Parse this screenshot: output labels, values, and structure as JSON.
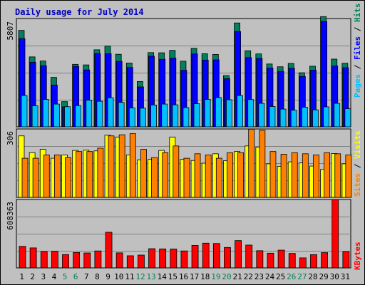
{
  "chart_data": [
    {
      "type": "bar",
      "title": "Daily usage for July 2014",
      "max_label": "5807",
      "categories": [
        "1",
        "2",
        "3",
        "4",
        "5",
        "6",
        "7",
        "8",
        "9",
        "10",
        "11",
        "12",
        "13",
        "14",
        "15",
        "16",
        "17",
        "18",
        "19",
        "20",
        "21",
        "22",
        "23",
        "24",
        "25",
        "26",
        "27",
        "28",
        "29",
        "30",
        "31"
      ],
      "weekend_days": [
        "5",
        "6",
        "12",
        "13",
        "19",
        "20",
        "26",
        "27"
      ],
      "series": [
        {
          "name": "Hits",
          "color": "#00805c",
          "values": [
            5170,
            3750,
            3530,
            2650,
            1350,
            3350,
            3320,
            4130,
            4330,
            3890,
            3420,
            2430,
            3980,
            3970,
            4100,
            3520,
            4210,
            3920,
            3880,
            2750,
            5570,
            4080,
            3910,
            3370,
            3220,
            3400,
            2900,
            3250,
            5910,
            3630,
            3410
          ]
        },
        {
          "name": "Files",
          "color": "#0000ff",
          "values": [
            4730,
            3460,
            3270,
            2240,
            1070,
            3240,
            3050,
            3930,
            3920,
            3510,
            3180,
            2140,
            3790,
            3620,
            3680,
            3030,
            3910,
            3580,
            3590,
            2580,
            5110,
            3710,
            3670,
            3150,
            2970,
            3140,
            2700,
            3040,
            5650,
            3260,
            3170
          ]
        },
        {
          "name": "Pages",
          "color": "#00c0ff",
          "values": [
            1680,
            1130,
            1470,
            1220,
            1080,
            1140,
            1430,
            1370,
            1560,
            1310,
            1010,
            1000,
            1170,
            1220,
            1180,
            1030,
            1240,
            1470,
            1570,
            1450,
            1680,
            1460,
            1260,
            1090,
            950,
            890,
            1050,
            910,
            1070,
            1260,
            970
          ]
        }
      ]
    },
    {
      "type": "bar",
      "max_label": "306",
      "categories": [
        "1",
        "2",
        "3",
        "4",
        "5",
        "6",
        "7",
        "8",
        "9",
        "10",
        "11",
        "12",
        "13",
        "14",
        "15",
        "16",
        "17",
        "18",
        "19",
        "20",
        "21",
        "22",
        "23",
        "24",
        "25",
        "26",
        "27",
        "28",
        "29",
        "30",
        "31"
      ],
      "series": [
        {
          "name": "Visits",
          "color": "#ffff00",
          "values": [
            275,
            200,
            215,
            175,
            190,
            210,
            211,
            208,
            278,
            270,
            190,
            168,
            170,
            210,
            270,
            170,
            165,
            153,
            195,
            164,
            205,
            230,
            225,
            150,
            139,
            159,
            154,
            140,
            125,
            196,
            150
          ]
        },
        {
          "name": "Sites",
          "color": "#ff8000",
          "values": [
            175,
            175,
            190,
            190,
            178,
            205,
            205,
            220,
            275,
            280,
            285,
            215,
            178,
            200,
            230,
            175,
            195,
            190,
            175,
            200,
            200,
            305,
            300,
            205,
            193,
            200,
            195,
            190,
            200,
            195,
            190
          ]
        }
      ]
    },
    {
      "type": "bar",
      "max_label": "608363",
      "categories": [
        "1",
        "2",
        "3",
        "4",
        "5",
        "6",
        "7",
        "8",
        "9",
        "10",
        "11",
        "12",
        "13",
        "14",
        "15",
        "16",
        "17",
        "18",
        "19",
        "20",
        "21",
        "22",
        "23",
        "24",
        "25",
        "26",
        "27",
        "28",
        "29",
        "30",
        "31"
      ],
      "series": [
        {
          "name": "KBytes",
          "color": "#ff0000",
          "values": [
            192000,
            178000,
            146000,
            148000,
            119000,
            137000,
            133000,
            151000,
            317000,
            134000,
            108000,
            114000,
            171000,
            169000,
            168000,
            151000,
            200000,
            220000,
            217000,
            182000,
            243000,
            203000,
            153000,
            131000,
            158000,
            129000,
            89000,
            118000,
            136000,
            608363,
            145000
          ]
        }
      ]
    }
  ]
}
